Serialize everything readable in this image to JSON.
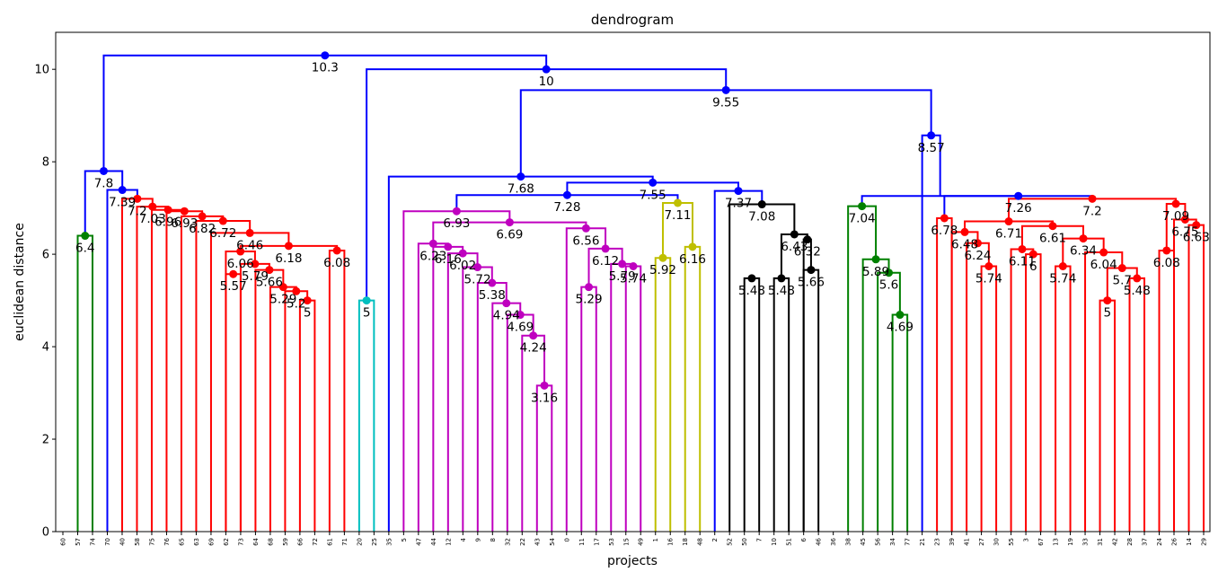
{
  "chart_data": {
    "type": "dendrogram",
    "title": "dendrogram",
    "xlabel": "projects",
    "ylabel": "euclidean distance",
    "ylim": [
      0,
      10.8
    ],
    "yticks": [
      0,
      2,
      4,
      6,
      8,
      10
    ],
    "leaves": [
      "60",
      "57",
      "74",
      "70",
      "40",
      "58",
      "75",
      "76",
      "65",
      "63",
      "69",
      "62",
      "73",
      "64",
      "68",
      "59",
      "66",
      "72",
      "61",
      "71",
      "20",
      "25",
      "35",
      "5",
      "47",
      "44",
      "12",
      "4",
      "9",
      "8",
      "32",
      "22",
      "43",
      "54",
      "0",
      "11",
      "17",
      "53",
      "15",
      "49",
      "1",
      "16",
      "18",
      "48",
      "2",
      "52",
      "50",
      "7",
      "10",
      "51",
      "6",
      "46",
      "36",
      "38",
      "45",
      "56",
      "34",
      "77",
      "21",
      "23",
      "39",
      "41",
      "27",
      "30",
      "55",
      "3",
      "67",
      "13",
      "19",
      "33",
      "31",
      "42",
      "28",
      "37",
      "24",
      "26",
      "14",
      "29"
    ],
    "linkage": [
      {
        "a": "L:19",
        "b": "L:18",
        "h": 6.08,
        "c": "#ff0000",
        "label": "6.08"
      },
      {
        "a": "L:2",
        "b": "L:1",
        "h": 6.4,
        "c": "#008000",
        "label": "6.4"
      },
      {
        "a": "L:17",
        "b": "L:16",
        "h": 5.0,
        "c": "#ff0000",
        "label": "5"
      },
      {
        "a": "N:2",
        "b": "L:15",
        "h": 5.2,
        "c": "#ff0000",
        "label": "5.2"
      },
      {
        "a": "N:3",
        "b": "L:14",
        "h": 5.29,
        "c": "#ff0000",
        "label": "5.29"
      },
      {
        "a": "N:4",
        "b": "L:13",
        "h": 5.66,
        "c": "#ff0000",
        "label": "5.66"
      },
      {
        "a": "N:5",
        "b": "L:12",
        "h": 5.79,
        "c": "#ff0000",
        "label": "5.79"
      },
      {
        "a": "L:12",
        "b": "L:11",
        "h": 5.57,
        "c": "#ff0000",
        "label": "5.57"
      },
      {
        "a": "N:6",
        "b": "L:11",
        "h": 6.06,
        "c": "#ff0000",
        "label": "6.06"
      },
      {
        "a": "N:0",
        "b": "N:8",
        "h": 6.18,
        "c": "#ff0000",
        "label": "6.18"
      },
      {
        "a": "N:9",
        "b": "L:10",
        "h": 6.46,
        "c": "#ff0000",
        "label": "6.46"
      },
      {
        "a": "N:10",
        "b": "L:9",
        "h": 6.72,
        "c": "#ff0000",
        "label": "6.72"
      },
      {
        "a": "N:11",
        "b": "L:8",
        "h": 6.82,
        "c": "#ff0000",
        "label": "6.82"
      },
      {
        "a": "N:12",
        "b": "L:7",
        "h": 6.93,
        "c": "#ff0000",
        "label": "6.93"
      },
      {
        "a": "N:13",
        "b": "L:6",
        "h": 6.96,
        "c": "#ff0000",
        "label": "6.96"
      },
      {
        "a": "N:14",
        "b": "L:5",
        "h": 7.03,
        "c": "#ff0000",
        "label": "7.03"
      },
      {
        "a": "N:15",
        "b": "L:4",
        "h": 7.2,
        "c": "#ff0000",
        "label": "7.2"
      },
      {
        "a": "N:16",
        "b": "L:3",
        "h": 7.39,
        "c": "#0000ff",
        "label": "7.39"
      },
      {
        "a": "N:17",
        "b": "N:1",
        "h": 7.8,
        "c": "#0000ff",
        "label": "7.8"
      },
      {
        "a": "L:21",
        "b": "L:20",
        "h": 5.0,
        "c": "#00bfbf",
        "label": "5"
      },
      {
        "a": "L:33",
        "b": "L:32",
        "h": 3.16,
        "c": "#bf00bf",
        "label": "3.16"
      },
      {
        "a": "N:20",
        "b": "L:31",
        "h": 4.24,
        "c": "#bf00bf",
        "label": "4.24"
      },
      {
        "a": "N:21",
        "b": "L:30",
        "h": 4.69,
        "c": "#bf00bf",
        "label": "4.69"
      },
      {
        "a": "N:22",
        "b": "L:29",
        "h": 4.94,
        "c": "#bf00bf",
        "label": "4.94"
      },
      {
        "a": "N:23",
        "b": "L:28",
        "h": 5.38,
        "c": "#bf00bf",
        "label": "5.38"
      },
      {
        "a": "N:24",
        "b": "L:27",
        "h": 5.72,
        "c": "#bf00bf",
        "label": "5.72"
      },
      {
        "a": "N:25",
        "b": "L:26",
        "h": 6.02,
        "c": "#bf00bf",
        "label": "6.02"
      },
      {
        "a": "N:26",
        "b": "L:25",
        "h": 6.16,
        "c": "#bf00bf",
        "label": "6.16"
      },
      {
        "a": "N:27",
        "b": "L:24",
        "h": 6.23,
        "c": "#bf00bf",
        "label": "6.23"
      },
      {
        "a": "L:39",
        "b": "L:38",
        "h": 5.74,
        "c": "#bf00bf",
        "label": "5.74"
      },
      {
        "a": "N:29",
        "b": "L:37",
        "h": 5.79,
        "c": "#bf00bf",
        "label": "5.79"
      },
      {
        "a": "L:36",
        "b": "L:35",
        "h": 5.29,
        "c": "#bf00bf",
        "label": "5.29"
      },
      {
        "a": "N:31",
        "b": "N:30",
        "h": 6.12,
        "c": "#bf00bf",
        "label": "6.12"
      },
      {
        "a": "N:32",
        "b": "L:34",
        "h": 6.56,
        "c": "#bf00bf",
        "label": "6.56"
      },
      {
        "a": "N:28",
        "b": "N:33",
        "h": 6.69,
        "c": "#bf00bf",
        "label": "6.69"
      },
      {
        "a": "N:34",
        "b": "L:23",
        "h": 6.93,
        "c": "#bf00bf",
        "label": "6.93"
      },
      {
        "a": "L:41",
        "b": "L:40",
        "h": 5.92,
        "c": "#bfbf00",
        "label": "5.92"
      },
      {
        "a": "L:43",
        "b": "L:42",
        "h": 6.16,
        "c": "#bfbf00",
        "label": "6.16"
      },
      {
        "a": "N:36",
        "b": "N:37",
        "h": 7.11,
        "c": "#bfbf00",
        "label": "7.11"
      },
      {
        "a": "N:35",
        "b": "N:38",
        "h": 7.28,
        "c": "#0000ff",
        "label": "7.28"
      },
      {
        "a": "L:47",
        "b": "L:46",
        "h": 5.48,
        "c": "#000000",
        "label": "5.48"
      },
      {
        "a": "L:49",
        "b": "L:48",
        "h": 5.48,
        "c": "#000000",
        "label": "5.48"
      },
      {
        "a": "L:51",
        "b": "L:50",
        "h": 5.66,
        "c": "#000000",
        "label": "5.66"
      },
      {
        "a": "N:42",
        "b": "L:50",
        "h": 6.32,
        "c": "#000000",
        "label": "6.32"
      },
      {
        "a": "N:43",
        "b": "N:41",
        "h": 6.43,
        "c": "#000000",
        "label": "6.43"
      },
      {
        "a": "N:44",
        "b": "L:45",
        "h": 7.08,
        "c": "#000000",
        "label": "7.08"
      },
      {
        "a": "N:45",
        "b": "L:44",
        "h": 7.37,
        "c": "#0000ff",
        "label": "7.37"
      },
      {
        "a": "N:39",
        "b": "N:46",
        "h": 7.55,
        "c": "#0000ff",
        "label": "7.55"
      },
      {
        "a": "N:47",
        "b": "L:22",
        "h": 7.68,
        "c": "#0000ff",
        "label": "7.68"
      },
      {
        "a": "L:57",
        "b": "L:56",
        "h": 4.69,
        "c": "#008000",
        "label": "4.69"
      },
      {
        "a": "N:49",
        "b": "L:55",
        "h": 5.6,
        "c": "#008000",
        "label": "5.6"
      },
      {
        "a": "N:50",
        "b": "L:54",
        "h": 5.89,
        "c": "#008000",
        "label": "5.89"
      },
      {
        "a": "N:51",
        "b": "L:53",
        "h": 7.04,
        "c": "#008000",
        "label": "7.04"
      },
      {
        "a": "L:60",
        "b": "L:59",
        "h": 6.78,
        "c": "#ff0000",
        "label": "6.78"
      },
      {
        "a": "L:63",
        "b": "L:62",
        "h": 5.74,
        "c": "#ff0000",
        "label": "5.74"
      },
      {
        "a": "N:54",
        "b": "L:61",
        "h": 6.24,
        "c": "#ff0000",
        "label": "6.24"
      },
      {
        "a": "N:55",
        "b": "L:60",
        "h": 6.48,
        "c": "#ff0000",
        "label": "6.48"
      },
      {
        "a": "L:66",
        "b": "L:65",
        "h": 6.0,
        "c": "#ff0000",
        "label": "6"
      },
      {
        "a": "N:57",
        "b": "L:64",
        "h": 6.11,
        "c": "#ff0000",
        "label": "6.11"
      },
      {
        "a": "L:68",
        "b": "L:67",
        "h": 5.74,
        "c": "#ff0000",
        "label": "5.74"
      },
      {
        "a": "L:71",
        "b": "L:70",
        "h": 5.0,
        "c": "#ff0000",
        "label": "5"
      },
      {
        "a": "L:73",
        "b": "L:72",
        "h": 5.48,
        "c": "#ff0000",
        "label": "5.48"
      },
      {
        "a": "N:60",
        "b": "N:61",
        "h": 5.7,
        "c": "#ff0000",
        "label": "5.7"
      },
      {
        "a": "N:62",
        "b": "L:69",
        "h": 6.04,
        "c": "#ff0000",
        "label": "6.04"
      },
      {
        "a": "N:59",
        "b": "N:63",
        "h": 6.34,
        "c": "#ff0000",
        "label": "6.34"
      },
      {
        "a": "N:58",
        "b": "N:64",
        "h": 6.61,
        "c": "#ff0000",
        "label": "6.61"
      },
      {
        "a": "N:56",
        "b": "N:65",
        "h": 6.71,
        "c": "#ff0000",
        "label": "6.71"
      },
      {
        "a": "L:77",
        "b": "L:76",
        "h": 6.63,
        "c": "#ff0000",
        "label": "6.63"
      },
      {
        "a": "N:67",
        "b": "L:75",
        "h": 6.75,
        "c": "#ff0000",
        "label": "6.75"
      },
      {
        "a": "L:75",
        "b": "L:74",
        "h": 6.08,
        "c": "#ff0000",
        "label": "6.08"
      },
      {
        "a": "N:68",
        "b": "N:69",
        "h": 7.09,
        "c": "#ff0000",
        "label": "7.09"
      },
      {
        "a": "N:66",
        "b": "N:70",
        "h": 7.2,
        "c": "#ff0000",
        "label": "7.2"
      },
      {
        "a": "N:53",
        "b": "N:71",
        "h": 7.26,
        "c": "#0000ff",
        "label": "7.26"
      },
      {
        "a": "N:52",
        "b": "N:72",
        "h": 7.26,
        "c": "#0000ff",
        "label": ""
      },
      {
        "a": "N:73",
        "b": "L:58",
        "h": 8.57,
        "c": "#0000ff",
        "label": "8.57"
      },
      {
        "a": "N:48",
        "b": "N:74",
        "h": 9.55,
        "c": "#0000ff",
        "label": "9.55"
      },
      {
        "a": "N:75",
        "b": "N:19",
        "h": 10.0,
        "c": "#0000ff",
        "label": "10"
      },
      {
        "a": "N:18",
        "b": "N:76",
        "h": 10.3,
        "c": "#0000ff",
        "label": "10.3"
      }
    ]
  }
}
